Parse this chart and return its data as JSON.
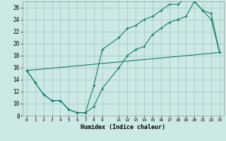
{
  "title": "",
  "xlabel": "Humidex (Indice chaleur)",
  "bg_color": "#cce9e5",
  "grid_color": "#aacfcc",
  "line_color": "#1a7a6e",
  "xlim": [
    -0.5,
    23.5
  ],
  "ylim": [
    8,
    27
  ],
  "xticks": [
    0,
    1,
    2,
    3,
    4,
    5,
    6,
    7,
    8,
    9,
    11,
    12,
    13,
    14,
    15,
    16,
    17,
    18,
    19,
    20,
    21,
    22,
    23
  ],
  "yticks": [
    8,
    10,
    12,
    14,
    16,
    18,
    20,
    22,
    24,
    26
  ],
  "line1_x": [
    0,
    1,
    2,
    3,
    4,
    5,
    6,
    7,
    8,
    9,
    11,
    12,
    13,
    14,
    15,
    16,
    17,
    18,
    19,
    20,
    21,
    22,
    23
  ],
  "line1_y": [
    15.5,
    13.5,
    11.5,
    10.5,
    10.5,
    9.0,
    8.5,
    8.5,
    9.5,
    12.5,
    16.0,
    18.0,
    19.0,
    19.5,
    21.5,
    22.5,
    23.5,
    24.0,
    24.5,
    27.0,
    25.5,
    25.0,
    18.5
  ],
  "line2_x": [
    0,
    1,
    2,
    3,
    4,
    5,
    6,
    7,
    8,
    9,
    11,
    12,
    13,
    14,
    15,
    16,
    17,
    18,
    19,
    20,
    21,
    22,
    23
  ],
  "line2_y": [
    15.5,
    13.5,
    11.5,
    10.5,
    10.5,
    9.0,
    8.5,
    8.5,
    13.0,
    19.0,
    21.0,
    22.5,
    23.0,
    24.0,
    24.5,
    25.5,
    26.5,
    26.5,
    27.5,
    27.0,
    25.5,
    24.0,
    18.5
  ],
  "line3_x": [
    0,
    23
  ],
  "line3_y": [
    15.5,
    18.5
  ]
}
